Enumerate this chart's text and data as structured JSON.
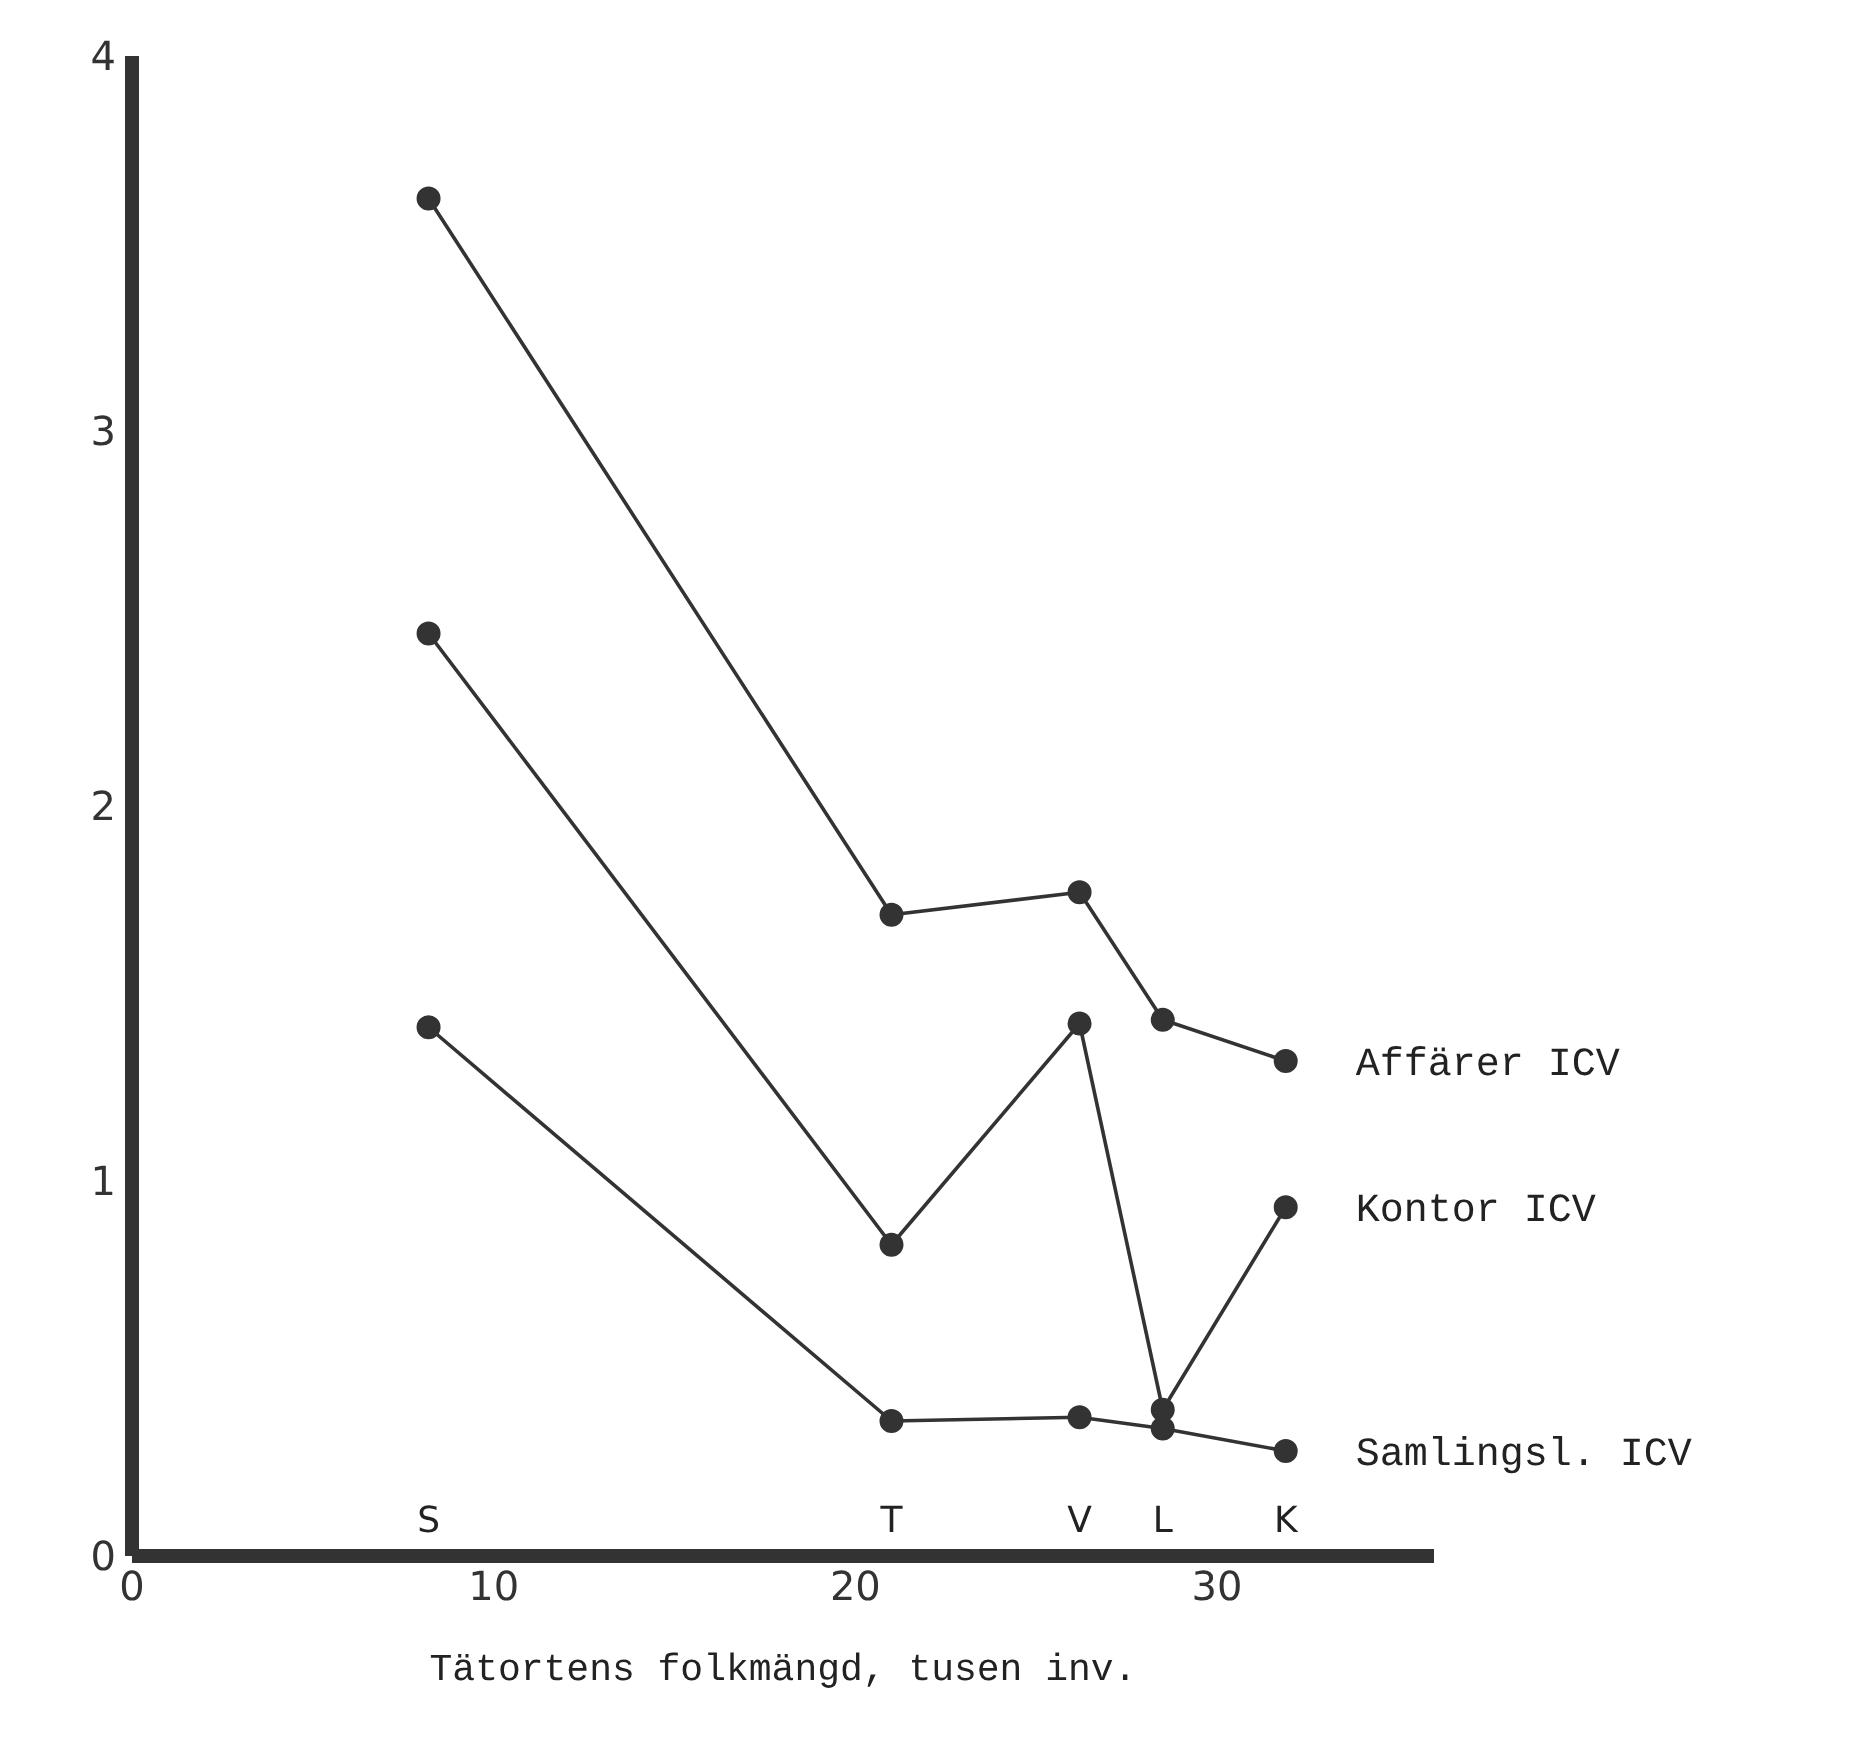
{
  "chart_data": {
    "type": "line",
    "xlabel": "Tätortens folkmängd, tusen inv.",
    "xlim": [
      0,
      36
    ],
    "xticks": [
      0,
      10,
      20,
      30
    ],
    "ylim": [
      0,
      4
    ],
    "yticks": [
      0,
      1,
      2,
      3,
      4
    ],
    "x": [
      8.2,
      21.0,
      26.2,
      28.5,
      31.9
    ],
    "series": [
      {
        "name": "Affärer ICV",
        "color": "#333333",
        "values": [
          3.62,
          1.71,
          1.77,
          1.43,
          1.32
        ]
      },
      {
        "name": "Kontor ICV",
        "color": "#333333",
        "values": [
          2.46,
          0.83,
          1.42,
          0.39,
          0.93
        ]
      },
      {
        "name": "Samlingsl. ICV",
        "color": "#333333",
        "values": [
          1.41,
          0.36,
          0.37,
          0.34,
          0.28
        ]
      }
    ],
    "annotations": [
      "S",
      "T",
      "V",
      "L",
      "K"
    ],
    "grid": false,
    "legend": false,
    "marker": "circle",
    "line_style": "solid"
  }
}
